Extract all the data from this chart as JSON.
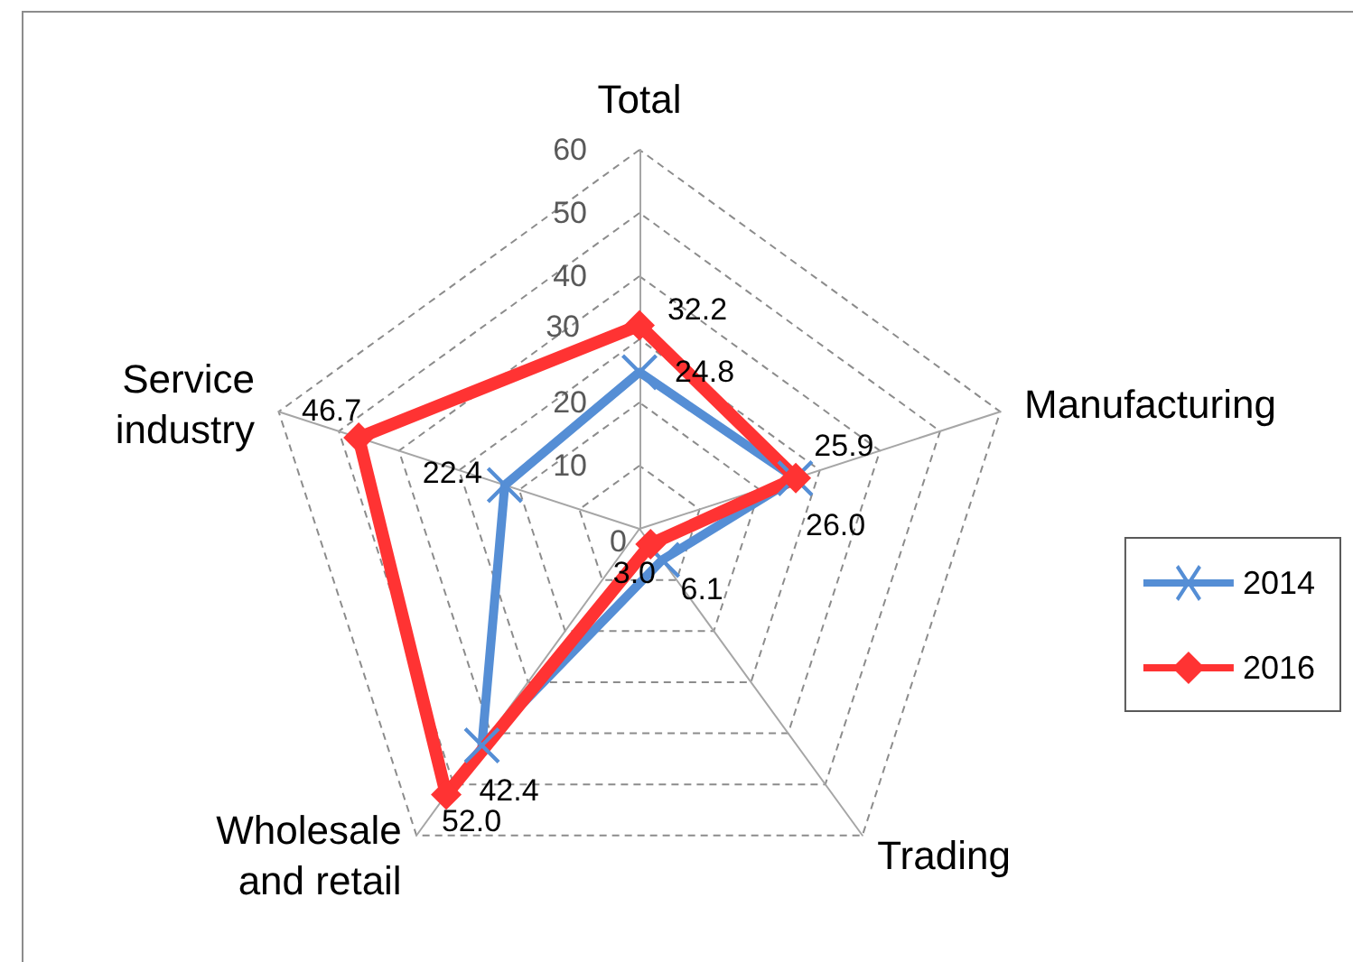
{
  "chart_data": {
    "type": "radar",
    "categories": [
      "Total",
      "Manufacturing",
      "Trading",
      "Wholesale and retail",
      "Service industry"
    ],
    "series": [
      {
        "name": "2014",
        "color": "#558ed5",
        "marker": "cross",
        "values": [
          24.8,
          25.9,
          6.1,
          42.4,
          22.4
        ],
        "value_labels": [
          "24.8",
          "25.9",
          "6.1",
          "42.4",
          "22.4"
        ]
      },
      {
        "name": "2016",
        "color": "#ff3333",
        "marker": "diamond",
        "values": [
          32.2,
          26.0,
          3.0,
          52.0,
          46.7
        ],
        "value_labels": [
          "32.2",
          "26.0",
          "3.0",
          "52.0",
          "46.7"
        ]
      }
    ],
    "ylim": [
      0,
      60
    ],
    "yticks": [
      0,
      10,
      20,
      30,
      40,
      50,
      60
    ],
    "grid": true,
    "legend": "right"
  }
}
